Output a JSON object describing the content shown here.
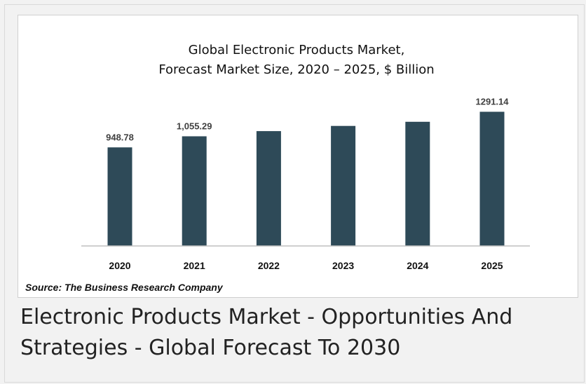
{
  "chart_data": {
    "type": "bar",
    "title_line1": "Global Electronic Products Market,",
    "title_line2": "Forecast Market Size, 2020 – 2025, $ Billion",
    "categories": [
      "2020",
      "2021",
      "2022",
      "2023",
      "2024",
      "2025"
    ],
    "values": [
      948.78,
      1055.29,
      1105,
      1155,
      1195,
      1291.14
    ],
    "data_labels": [
      "948.78",
      "1,055.29",
      "",
      "",
      "",
      "1291.14"
    ],
    "ylim": [
      0,
      1400
    ],
    "bar_color": "#2e4a58",
    "source": "Source: The Business Research Company"
  },
  "caption": {
    "line1": "Electronic Products Market - Opportunities And",
    "line2": "Strategies - Global Forecast To 2030"
  }
}
